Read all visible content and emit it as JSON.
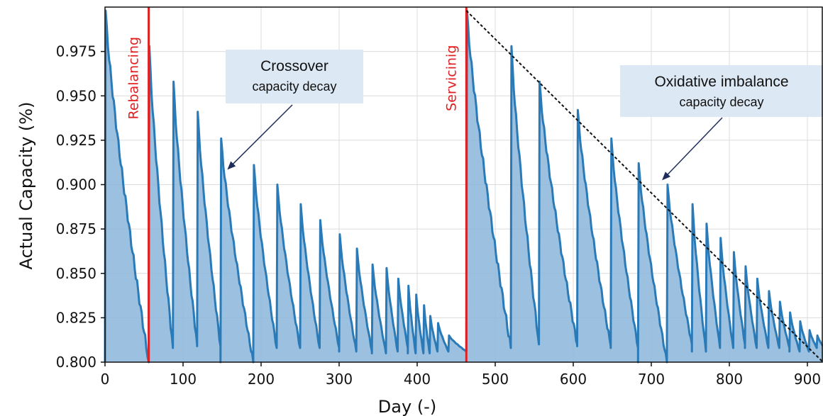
{
  "chart_data": {
    "type": "area",
    "title": "",
    "xlabel": "Day (-)",
    "ylabel": "Actual Capacity (%)",
    "xlim": [
      0,
      920
    ],
    "ylim": [
      0.8,
      1.0
    ],
    "x_ticks": [
      0,
      100,
      200,
      300,
      400,
      500,
      600,
      700,
      800,
      900
    ],
    "y_ticks": [
      0.8,
      0.825,
      0.85,
      0.875,
      0.9,
      0.925,
      0.95,
      0.975
    ],
    "y_tick_labels": [
      "0.800",
      "0.825",
      "0.850",
      "0.875",
      "0.900",
      "0.925",
      "0.950",
      "0.975"
    ],
    "grid": true,
    "line_color": "#2a7ab8",
    "fill_color": "#8bb6da",
    "events": [
      {
        "day": 56,
        "label": "Rebalancing",
        "color": "#e02020"
      },
      {
        "day": 463,
        "label": "Servicinig",
        "color": "#e02020"
      }
    ],
    "cycles": [
      {
        "x0": 0,
        "peak": 0.998,
        "x1": 56,
        "trough": 0.8
      },
      {
        "x0": 56,
        "peak": 0.978,
        "x1": 87,
        "trough": 0.808
      },
      {
        "x0": 87,
        "peak": 0.958,
        "x1": 118,
        "trough": 0.81
      },
      {
        "x0": 118,
        "peak": 0.941,
        "x1": 148,
        "trough": 0.809
      },
      {
        "x0": 148,
        "peak": 0.926,
        "x1": 190,
        "trough": 0.8
      },
      {
        "x0": 190,
        "peak": 0.911,
        "x1": 220,
        "trough": 0.808
      },
      {
        "x0": 220,
        "peak": 0.9,
        "x1": 250,
        "trough": 0.808
      },
      {
        "x0": 250,
        "peak": 0.889,
        "x1": 275,
        "trough": 0.808
      },
      {
        "x0": 275,
        "peak": 0.88,
        "x1": 300,
        "trough": 0.808
      },
      {
        "x0": 300,
        "peak": 0.872,
        "x1": 322,
        "trough": 0.806
      },
      {
        "x0": 322,
        "peak": 0.864,
        "x1": 342,
        "trough": 0.806
      },
      {
        "x0": 342,
        "peak": 0.855,
        "x1": 360,
        "trough": 0.805
      },
      {
        "x0": 360,
        "peak": 0.853,
        "x1": 375,
        "trough": 0.806
      },
      {
        "x0": 375,
        "peak": 0.847,
        "x1": 388,
        "trough": 0.808
      },
      {
        "x0": 388,
        "peak": 0.843,
        "x1": 398,
        "trough": 0.805
      },
      {
        "x0": 398,
        "peak": 0.838,
        "x1": 408,
        "trough": 0.805
      },
      {
        "x0": 408,
        "peak": 0.832,
        "x1": 416,
        "trough": 0.805
      },
      {
        "x0": 416,
        "peak": 0.826,
        "x1": 426,
        "trough": 0.806
      },
      {
        "x0": 426,
        "peak": 0.822,
        "x1": 440,
        "trough": 0.806
      },
      {
        "x0": 440,
        "peak": 0.815,
        "x1": 463,
        "trough": 0.806
      },
      {
        "x0": 463,
        "peak": 0.998,
        "x1": 520,
        "trough": 0.808
      },
      {
        "x0": 520,
        "peak": 0.978,
        "x1": 556,
        "trough": 0.81
      },
      {
        "x0": 556,
        "peak": 0.958,
        "x1": 605,
        "trough": 0.81
      },
      {
        "x0": 605,
        "peak": 0.942,
        "x1": 648,
        "trough": 0.809
      },
      {
        "x0": 648,
        "peak": 0.926,
        "x1": 683,
        "trough": 0.808
      },
      {
        "x0": 683,
        "peak": 0.912,
        "x1": 720,
        "trough": 0.8
      },
      {
        "x0": 720,
        "peak": 0.9,
        "x1": 752,
        "trough": 0.81
      },
      {
        "x0": 752,
        "peak": 0.889,
        "x1": 770,
        "trough": 0.806
      },
      {
        "x0": 770,
        "peak": 0.878,
        "x1": 788,
        "trough": 0.808
      },
      {
        "x0": 788,
        "peak": 0.87,
        "x1": 805,
        "trough": 0.808
      },
      {
        "x0": 805,
        "peak": 0.862,
        "x1": 820,
        "trough": 0.81
      },
      {
        "x0": 820,
        "peak": 0.854,
        "x1": 835,
        "trough": 0.808
      },
      {
        "x0": 835,
        "peak": 0.847,
        "x1": 850,
        "trough": 0.808
      },
      {
        "x0": 850,
        "peak": 0.84,
        "x1": 864,
        "trough": 0.808
      },
      {
        "x0": 864,
        "peak": 0.834,
        "x1": 877,
        "trough": 0.808
      },
      {
        "x0": 877,
        "peak": 0.828,
        "x1": 890,
        "trough": 0.806
      },
      {
        "x0": 890,
        "peak": 0.823,
        "x1": 902,
        "trough": 0.806
      },
      {
        "x0": 902,
        "peak": 0.818,
        "x1": 912,
        "trough": 0.808
      },
      {
        "x0": 912,
        "peak": 0.815,
        "x1": 920,
        "trough": 0.809
      }
    ],
    "trend_line": {
      "from": [
        463,
        0.998
      ],
      "to": [
        920,
        0.8
      ],
      "style": "dashed",
      "color": "#111111"
    },
    "annotations": [
      {
        "line1": "Crossover",
        "line2": "capacity decay",
        "arrow_to": [
          158,
          0.909
        ],
        "box_color": "#dce8f4"
      },
      {
        "line1": "Oxidative imbalance",
        "line2": "capacity decay",
        "arrow_to": [
          715,
          0.903
        ],
        "box_color": "#dce8f4"
      }
    ]
  }
}
